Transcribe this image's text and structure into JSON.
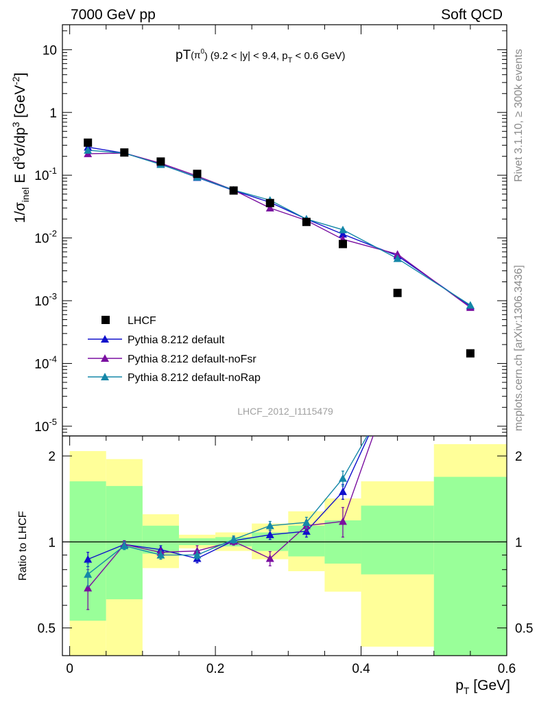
{
  "header": {
    "left": "7000 GeV pp",
    "right": "Soft QCD"
  },
  "side_texts": {
    "top": "Rivet 3.1.10, ≥ 300k events",
    "bottom": "mcplots.cern.ch [arXiv:1306.3436]"
  },
  "colors": {
    "data": "#000000",
    "default": "#1010cc",
    "noFsr": "#7a0fa0",
    "noRap": "#1487a8",
    "band_outer": "#ffff99",
    "band_inner": "#99ff99"
  },
  "chart_data": [
    {
      "type": "scatter",
      "title": "pT(π⁰) (9.2 < |y| < 9.4, pT < 0.6 GeV)",
      "ylabel": "1/σ_inel E d³σ/dp³ [GeV⁻²]",
      "yscale": "log",
      "ylim": [
        7e-06,
        25
      ],
      "xlim": [
        -0.01,
        0.6
      ],
      "ytick_labels": [
        "10",
        "1",
        "10⁻¹",
        "10⁻²",
        "10⁻³",
        "10⁻⁴",
        "10⁻⁵"
      ],
      "watermark": "LHCF_2012_I1115479",
      "legend_position": "bottom-left",
      "x": [
        0.025,
        0.075,
        0.125,
        0.175,
        0.225,
        0.275,
        0.325,
        0.375,
        0.45,
        0.55
      ],
      "series": [
        {
          "name": "LHCF",
          "marker": "square",
          "values": [
            0.33,
            0.23,
            0.165,
            0.105,
            0.057,
            0.036,
            0.018,
            0.008,
            0.00133,
            0.000145
          ]
        },
        {
          "name": "Pythia 8.212 default",
          "marker": "triangle",
          "values": [
            0.28,
            0.225,
            0.15,
            0.092,
            0.057,
            0.037,
            0.02,
            0.0115,
            0.0052,
            0.00082
          ]
        },
        {
          "name": "Pythia 8.212 default-noFsr",
          "marker": "triangle",
          "values": [
            0.22,
            0.225,
            0.155,
            0.097,
            0.058,
            0.03,
            0.019,
            0.0095,
            0.0055,
            0.00078
          ]
        },
        {
          "name": "Pythia 8.212 default-noRap",
          "marker": "triangle",
          "values": [
            0.25,
            0.225,
            0.148,
            0.093,
            0.058,
            0.04,
            0.02,
            0.0135,
            0.0047,
            0.00085
          ]
        }
      ]
    },
    {
      "type": "line",
      "ylabel": "Ratio to LHCF",
      "xlabel": "pT [GeV]",
      "yscale": "log",
      "ylim": [
        0.4,
        2.35
      ],
      "xlim": [
        -0.01,
        0.6
      ],
      "ytick_labels": [
        "2",
        "1",
        "0.5"
      ],
      "xtick_labels": [
        "0",
        "0.2",
        "0.4",
        "0.6"
      ],
      "bands": [
        {
          "x_lo": 0.0,
          "x_hi": 0.05,
          "outer": [
            0.4,
            2.08
          ],
          "inner": [
            0.53,
            1.63
          ]
        },
        {
          "x_lo": 0.05,
          "x_hi": 0.1,
          "outer": [
            0.4,
            1.95
          ],
          "inner": [
            0.63,
            1.57
          ]
        },
        {
          "x_lo": 0.1,
          "x_hi": 0.15,
          "outer": [
            0.81,
            1.25
          ],
          "inner": [
            0.91,
            1.14
          ]
        },
        {
          "x_lo": 0.15,
          "x_hi": 0.2,
          "outer": [
            0.95,
            1.06
          ],
          "inner": [
            0.975,
            1.03
          ]
        },
        {
          "x_lo": 0.2,
          "x_hi": 0.25,
          "outer": [
            0.93,
            1.08
          ],
          "inner": [
            0.965,
            1.04
          ]
        },
        {
          "x_lo": 0.25,
          "x_hi": 0.3,
          "outer": [
            0.87,
            1.16
          ],
          "inner": [
            0.93,
            1.08
          ]
        },
        {
          "x_lo": 0.3,
          "x_hi": 0.35,
          "outer": [
            0.79,
            1.28
          ],
          "inner": [
            0.89,
            1.14
          ]
        },
        {
          "x_lo": 0.35,
          "x_hi": 0.4,
          "outer": [
            0.67,
            1.42
          ],
          "inner": [
            0.84,
            1.19
          ]
        },
        {
          "x_lo": 0.4,
          "x_hi": 0.5,
          "outer": [
            0.43,
            1.63
          ],
          "inner": [
            0.77,
            1.34
          ]
        },
        {
          "x_lo": 0.5,
          "x_hi": 0.6,
          "outer": [
            0.4,
            2.2
          ],
          "inner": [
            0.4,
            1.69
          ]
        }
      ],
      "x": [
        0.025,
        0.075,
        0.125,
        0.175,
        0.225,
        0.275,
        0.325,
        0.375,
        0.45
      ],
      "series": [
        {
          "name": "Pythia 8.212 default",
          "values": [
            0.87,
            0.98,
            0.94,
            0.875,
            1.01,
            1.06,
            1.09,
            1.5,
            3.9
          ],
          "err": [
            0.05,
            0.03,
            0.03,
            0.03,
            0.03,
            0.04,
            0.05,
            0.09,
            0
          ]
        },
        {
          "name": "Pythia 8.212 default-noFsr",
          "values": [
            0.69,
            0.98,
            0.92,
            0.93,
            1.005,
            0.875,
            1.14,
            1.18,
            4.1
          ],
          "err": [
            0.11,
            0.03,
            0.03,
            0.04,
            0.03,
            0.05,
            0.05,
            0.14,
            0
          ]
        },
        {
          "name": "Pythia 8.212 default-noRap",
          "values": [
            0.77,
            0.97,
            0.9,
            0.9,
            1.02,
            1.14,
            1.17,
            1.67,
            3.6
          ],
          "err": [
            0.07,
            0.03,
            0.03,
            0.03,
            0.03,
            0.04,
            0.05,
            0.1,
            0
          ]
        }
      ]
    }
  ]
}
